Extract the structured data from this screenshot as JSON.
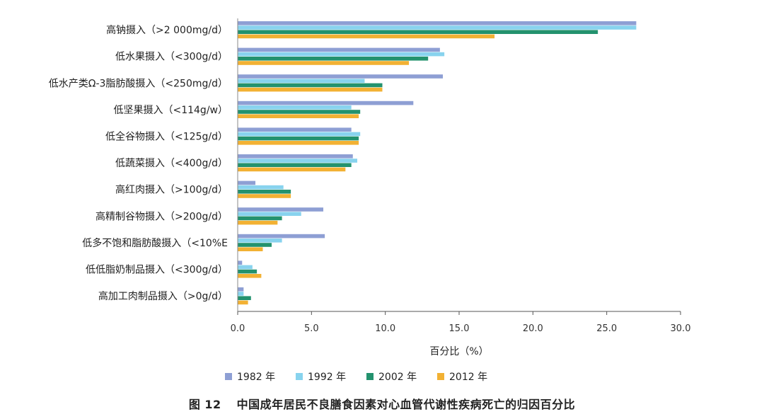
{
  "caption": {
    "number": "图 12",
    "text": "中国成年居民不良膳食因素对心血管代谢性疾病死亡的归因百分比"
  },
  "chart_data": {
    "type": "bar",
    "orientation": "horizontal",
    "xlabel": "百分比（%）",
    "xlim": [
      0,
      30
    ],
    "xticks": [
      "0.0",
      "5.0",
      "10.0",
      "15.0",
      "20.0",
      "25.0",
      "30.0"
    ],
    "categories": [
      "高钠摄入（>2 000mg/d）",
      "低水果摄入（<300g/d）",
      "低水产类Ω-3脂肪酸摄入（<250mg/d）",
      "低坚果摄入（<114g/w）",
      "低全谷物摄入（<125g/d）",
      "低蔬菜摄入（<400g/d）",
      "高红肉摄入（>100g/d）",
      "高精制谷物摄入（>200g/d）",
      "低多不饱和脂肪酸摄入（<10%E",
      "低低脂奶制品摄入（<300g/d）",
      "高加工肉制品摄入（>0g/d）"
    ],
    "series": [
      {
        "name": "1982 年",
        "color": "#8e9fd4",
        "values": [
          27.0,
          13.7,
          13.9,
          11.9,
          7.7,
          7.8,
          1.2,
          5.8,
          5.9,
          0.3,
          0.4
        ]
      },
      {
        "name": "1992 年",
        "color": "#88d3ee",
        "values": [
          27.0,
          14.0,
          8.6,
          7.7,
          8.3,
          8.1,
          3.1,
          4.3,
          3.0,
          1.0,
          0.4
        ]
      },
      {
        "name": "2002 年",
        "color": "#23926e",
        "values": [
          24.4,
          12.9,
          9.8,
          8.3,
          8.2,
          7.7,
          3.6,
          3.0,
          2.3,
          1.3,
          0.9
        ]
      },
      {
        "name": "2012 年",
        "color": "#f2b133",
        "values": [
          17.4,
          11.6,
          9.8,
          8.2,
          8.2,
          7.3,
          3.6,
          2.7,
          1.7,
          1.6,
          0.7
        ]
      }
    ],
    "grid": false,
    "legend_position": "bottom"
  }
}
